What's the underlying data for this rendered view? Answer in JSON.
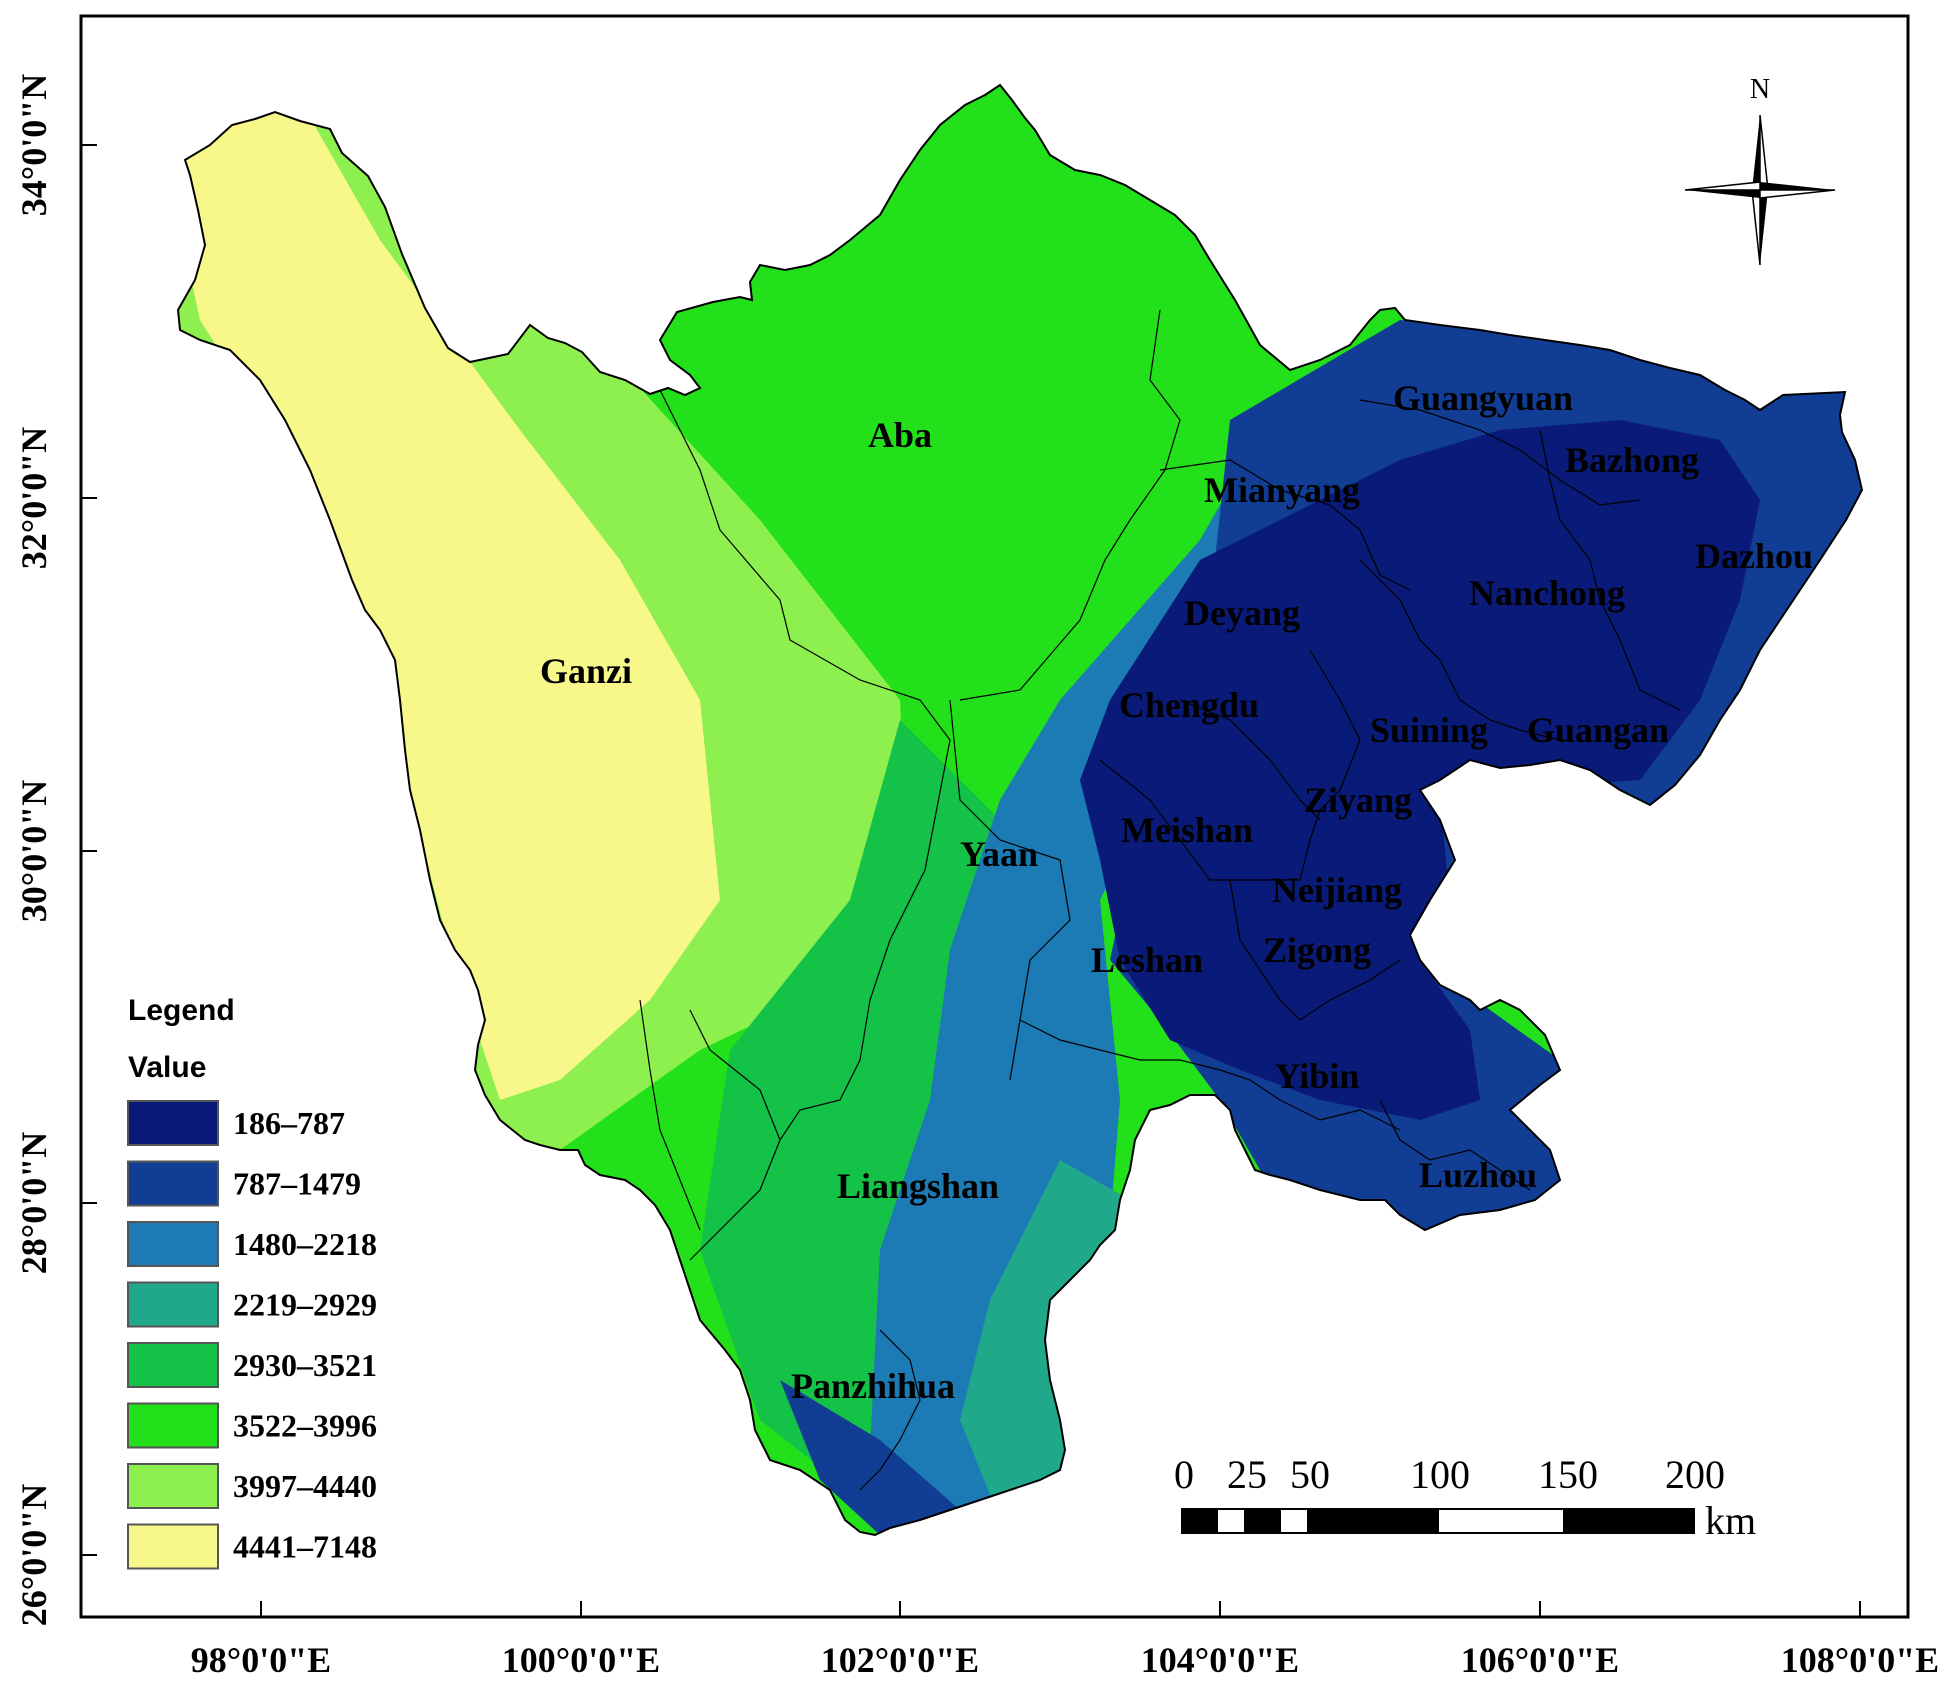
{
  "map": {
    "north_label": "N",
    "lon_labels": [
      "98°0'0\"E",
      "100°0'0\"E",
      "102°0'0\"E",
      "104°0'0\"E",
      "106°0'0\"E",
      "108°0'0\"E"
    ],
    "lat_labels": [
      "34°0'0\"N",
      "32°0'0\"N",
      "30°0'0\"N",
      "28°0'0\"N",
      "26°0'0\"N"
    ],
    "regions": [
      "Aba",
      "Ganzi",
      "Guangyuan",
      "Bazhong",
      "Mianyang",
      "Dazhou",
      "Nanchong",
      "Deyang",
      "Chengdu",
      "Suining",
      "Guangan",
      "Ziyang",
      "Meishan",
      "Yaan",
      "Neijiang",
      "Leshan",
      "Zigong",
      "Yibin",
      "Luzhou",
      "Liangshan",
      "Panzhihua"
    ]
  },
  "legend": {
    "title": "Legend",
    "subtitle": "Value",
    "items": [
      {
        "label": "186–787",
        "color": "#0a1a78"
      },
      {
        "label": "787–1479",
        "color": "#123d94"
      },
      {
        "label": "1480–2218",
        "color": "#1c7ab4"
      },
      {
        "label": "2219–2929",
        "color": "#1fa98a"
      },
      {
        "label": "2930–3521",
        "color": "#14c247"
      },
      {
        "label": "3522–3996",
        "color": "#22e01a"
      },
      {
        "label": "3997–4440",
        "color": "#8ef04e"
      },
      {
        "label": "4441–7148",
        "color": "#f7f78a"
      }
    ]
  },
  "scale_bar": {
    "labels": [
      "0",
      "25",
      "50",
      "100",
      "150",
      "200"
    ],
    "unit": "km"
  }
}
